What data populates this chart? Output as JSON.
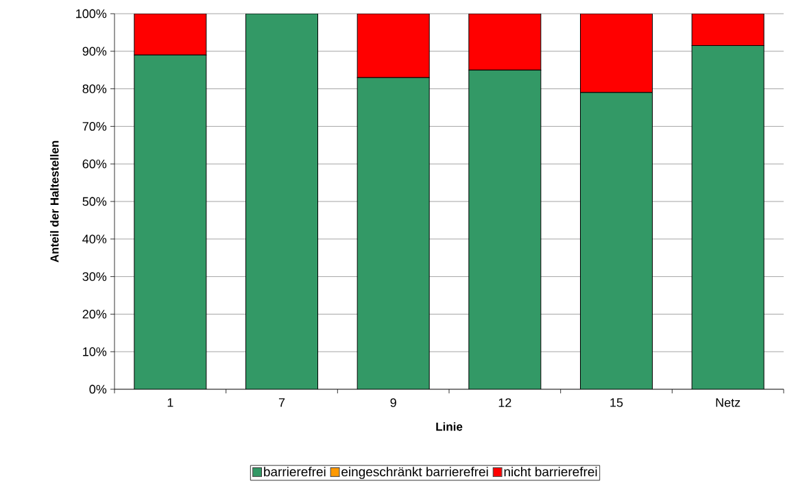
{
  "chart_data": {
    "type": "bar",
    "stacked": true,
    "xlabel": "Linie",
    "ylabel": "Anteil der Haltestellen",
    "categories": [
      "1",
      "7",
      "9",
      "12",
      "15",
      "Netz"
    ],
    "series": [
      {
        "name": "barrierefrei",
        "color": "#339966",
        "values": [
          89,
          100,
          83,
          85,
          79,
          91.5
        ]
      },
      {
        "name": "eingeschränkt barrierefrei",
        "color": "#ff9900",
        "values": [
          0,
          0,
          0,
          0,
          0,
          0
        ]
      },
      {
        "name": "nicht barrierefrei",
        "color": "#ff0000",
        "values": [
          11,
          0,
          17,
          15,
          21,
          8.5
        ]
      }
    ],
    "ylim": [
      0,
      100
    ],
    "yticks": [
      {
        "value": 0,
        "label": "0%"
      },
      {
        "value": 10,
        "label": "10%"
      },
      {
        "value": 20,
        "label": "20%"
      },
      {
        "value": 30,
        "label": "30%"
      },
      {
        "value": 40,
        "label": "40%"
      },
      {
        "value": 50,
        "label": "50%"
      },
      {
        "value": 60,
        "label": "60%"
      },
      {
        "value": 70,
        "label": "70%"
      },
      {
        "value": 80,
        "label": "80%"
      },
      {
        "value": 90,
        "label": "90%"
      },
      {
        "value": 100,
        "label": "100%"
      }
    ],
    "grid": "y",
    "legend": "bottom"
  }
}
